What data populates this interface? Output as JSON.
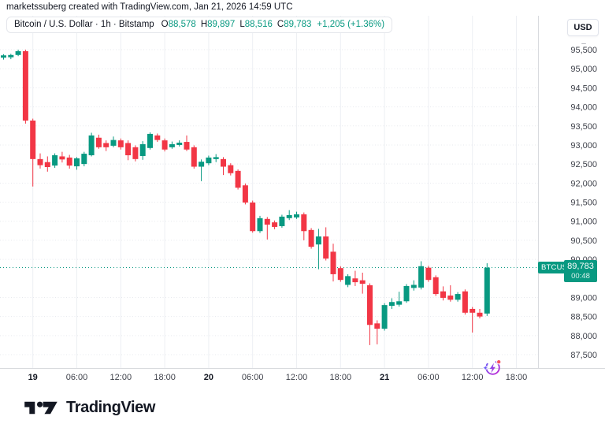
{
  "attribution": "marketssuberg created with TradingView.com, Jan 21, 2026 14:59 UTC",
  "legend": {
    "series_title": "Bitcoin / U.S. Dollar · 1h · Bitstamp",
    "ohlc": [
      {
        "label": "O",
        "value": "88,578"
      },
      {
        "label": "H",
        "value": "89,897"
      },
      {
        "label": "L",
        "value": "88,516"
      },
      {
        "label": "C",
        "value": "89,783"
      }
    ],
    "change": "+1,205 (+1.36%)"
  },
  "price_axis": {
    "currency": "USD",
    "scale_toggle": "–",
    "labels": [
      {
        "text": "95,500",
        "value": 95500
      },
      {
        "text": "95,000",
        "value": 95000
      },
      {
        "text": "94,500",
        "value": 94500
      },
      {
        "text": "94,000",
        "value": 94000
      },
      {
        "text": "93,500",
        "value": 93500
      },
      {
        "text": "93,000",
        "value": 93000
      },
      {
        "text": "92,500",
        "value": 92500
      },
      {
        "text": "92,000",
        "value": 92000
      },
      {
        "text": "91,500",
        "value": 91500
      },
      {
        "text": "91,000",
        "value": 91000
      },
      {
        "text": "90,500",
        "value": 90500
      },
      {
        "text": "90,000",
        "value": 90000
      },
      {
        "text": "89,000",
        "value": 89000
      },
      {
        "text": "88,500",
        "value": 88500
      },
      {
        "text": "88,000",
        "value": 88000
      },
      {
        "text": "87,500",
        "value": 87500
      }
    ]
  },
  "time_axis": {
    "labels": [
      {
        "text": "19",
        "i": 4,
        "day": true
      },
      {
        "text": "06:00",
        "i": 10
      },
      {
        "text": "12:00",
        "i": 16
      },
      {
        "text": "18:00",
        "i": 22
      },
      {
        "text": "20",
        "i": 28,
        "day": true
      },
      {
        "text": "06:00",
        "i": 34
      },
      {
        "text": "12:00",
        "i": 40
      },
      {
        "text": "18:00",
        "i": 46
      },
      {
        "text": "21",
        "i": 52,
        "day": true
      },
      {
        "text": "06:00",
        "i": 58
      },
      {
        "text": "12:00",
        "i": 64
      },
      {
        "text": "18:00",
        "i": 70
      }
    ]
  },
  "price_line": {
    "symbol": "BTCUSD",
    "price": "89,783",
    "value": 89783,
    "countdown": "00:48"
  },
  "logo": {
    "text": "TradingView"
  },
  "icons": {
    "replay": "replay-lightning-icon"
  },
  "colors": {
    "up": "#089981",
    "down": "#F23645",
    "price_line": "#089981",
    "axis_text": "#40434c",
    "day_text": "#131722",
    "vgrid": "#edeff3",
    "hgrid": "#e7e9ee",
    "axis_line": "#d8dade",
    "badge_bg": "#089981",
    "logo_color": "#131722",
    "replay_blue": "#6D5DF6",
    "replay_magenta": "#C026D3",
    "replay_dot": "#F7525F"
  },
  "chart_data": {
    "type": "candlestick",
    "title": "Bitcoin / U.S. Dollar",
    "symbol": "BTCUSD",
    "exchange": "Bitstamp",
    "interval": "1h",
    "ylim": [
      87250,
      95670
    ],
    "grid": "on",
    "candles": [
      {
        "t": "Jan 18 20:00",
        "v": [
          95290,
          95380,
          95240,
          95350
        ]
      },
      {
        "t": "Jan 18 21:00",
        "v": [
          95300,
          95390,
          95250,
          95360
        ]
      },
      {
        "t": "Jan 18 22:00",
        "v": [
          95360,
          95500,
          95330,
          95460
        ]
      },
      {
        "t": "Jan 18 23:00",
        "v": [
          95460,
          95500,
          93560,
          93640
        ]
      },
      {
        "t": "Jan 19 00:00",
        "v": [
          93640,
          93690,
          91910,
          92630
        ]
      },
      {
        "t": "Jan 19 01:00",
        "v": [
          92630,
          92780,
          92380,
          92470
        ]
      },
      {
        "t": "Jan 19 02:00",
        "v": [
          92550,
          92700,
          92300,
          92420
        ]
      },
      {
        "t": "Jan 19 03:00",
        "v": [
          92460,
          92780,
          92400,
          92730
        ]
      },
      {
        "t": "Jan 19 04:00",
        "v": [
          92700,
          92820,
          92540,
          92620
        ]
      },
      {
        "t": "Jan 19 05:00",
        "v": [
          92670,
          92740,
          92380,
          92460
        ]
      },
      {
        "t": "Jan 19 06:00",
        "v": [
          92440,
          92680,
          92350,
          92650
        ]
      },
      {
        "t": "Jan 19 07:00",
        "v": [
          92500,
          92820,
          92440,
          92770
        ]
      },
      {
        "t": "Jan 19 08:00",
        "v": [
          92730,
          93320,
          92700,
          93250
        ]
      },
      {
        "t": "Jan 19 09:00",
        "v": [
          93190,
          93270,
          92900,
          92940
        ]
      },
      {
        "t": "Jan 19 10:00",
        "v": [
          93050,
          93120,
          92840,
          92940
        ]
      },
      {
        "t": "Jan 19 11:00",
        "v": [
          92980,
          93220,
          92940,
          93130
        ]
      },
      {
        "t": "Jan 19 12:00",
        "v": [
          93120,
          93170,
          92880,
          92940
        ]
      },
      {
        "t": "Jan 19 13:00",
        "v": [
          93050,
          93120,
          92600,
          92730
        ]
      },
      {
        "t": "Jan 19 14:00",
        "v": [
          92940,
          92990,
          92570,
          92630
        ]
      },
      {
        "t": "Jan 19 15:00",
        "v": [
          92710,
          93100,
          92610,
          93020
        ]
      },
      {
        "t": "Jan 19 16:00",
        "v": [
          92920,
          93330,
          92880,
          93290
        ]
      },
      {
        "t": "Jan 19 17:00",
        "v": [
          93250,
          93300,
          93080,
          93130
        ]
      },
      {
        "t": "Jan 19 18:00",
        "v": [
          93120,
          93170,
          92830,
          92880
        ]
      },
      {
        "t": "Jan 19 19:00",
        "v": [
          92940,
          93090,
          92900,
          93020
        ]
      },
      {
        "t": "Jan 19 20:00",
        "v": [
          93000,
          93120,
          92960,
          93060
        ]
      },
      {
        "t": "Jan 19 21:00",
        "v": [
          93080,
          93250,
          92840,
          92880
        ]
      },
      {
        "t": "Jan 19 22:00",
        "v": [
          92940,
          92990,
          92380,
          92430
        ]
      },
      {
        "t": "Jan 19 23:00",
        "v": [
          92430,
          92620,
          92050,
          92560
        ]
      },
      {
        "t": "Jan 20 00:00",
        "v": [
          92520,
          92720,
          92470,
          92670
        ]
      },
      {
        "t": "Jan 20 01:00",
        "v": [
          92630,
          92760,
          92550,
          92680
        ]
      },
      {
        "t": "Jan 20 02:00",
        "v": [
          92630,
          92680,
          92210,
          92430
        ]
      },
      {
        "t": "Jan 20 03:00",
        "v": [
          92470,
          92520,
          92200,
          92260
        ]
      },
      {
        "t": "Jan 20 04:00",
        "v": [
          92320,
          92360,
          91830,
          91880
        ]
      },
      {
        "t": "Jan 20 05:00",
        "v": [
          91940,
          91990,
          91440,
          91490
        ]
      },
      {
        "t": "Jan 20 06:00",
        "v": [
          91490,
          91540,
          90700,
          90740
        ]
      },
      {
        "t": "Jan 20 07:00",
        "v": [
          90740,
          91140,
          90690,
          91080
        ]
      },
      {
        "t": "Jan 20 08:00",
        "v": [
          91060,
          91110,
          90520,
          90910
        ]
      },
      {
        "t": "Jan 20 09:00",
        "v": [
          90970,
          91020,
          90790,
          90850
        ]
      },
      {
        "t": "Jan 20 10:00",
        "v": [
          90870,
          91170,
          90830,
          91120
        ]
      },
      {
        "t": "Jan 20 11:00",
        "v": [
          91080,
          91290,
          91030,
          91160
        ]
      },
      {
        "t": "Jan 20 12:00",
        "v": [
          91100,
          91250,
          91060,
          91180
        ]
      },
      {
        "t": "Jan 20 13:00",
        "v": [
          91180,
          91230,
          90500,
          90740
        ]
      },
      {
        "t": "Jan 20 14:00",
        "v": [
          90770,
          90820,
          90280,
          90330
        ]
      },
      {
        "t": "Jan 20 15:00",
        "v": [
          90390,
          90800,
          89740,
          90600
        ]
      },
      {
        "t": "Jan 20 16:00",
        "v": [
          90600,
          90840,
          89970,
          90020
        ]
      },
      {
        "t": "Jan 20 17:00",
        "v": [
          90200,
          90410,
          89420,
          89610
        ]
      },
      {
        "t": "Jan 20 18:00",
        "v": [
          89770,
          89820,
          89410,
          89460
        ]
      },
      {
        "t": "Jan 20 19:00",
        "v": [
          89330,
          89610,
          89270,
          89560
        ]
      },
      {
        "t": "Jan 20 20:00",
        "v": [
          89500,
          89700,
          89300,
          89400
        ]
      },
      {
        "t": "Jan 20 21:00",
        "v": [
          89450,
          89650,
          89100,
          89360
        ]
      },
      {
        "t": "Jan 20 22:00",
        "v": [
          89320,
          89370,
          87750,
          88280
        ]
      },
      {
        "t": "Jan 20 23:00",
        "v": [
          88320,
          88400,
          87770,
          88180
        ]
      },
      {
        "t": "Jan 21 00:00",
        "v": [
          88180,
          88850,
          88130,
          88800
        ]
      },
      {
        "t": "Jan 21 01:00",
        "v": [
          88780,
          88980,
          88700,
          88880
        ]
      },
      {
        "t": "Jan 21 02:00",
        "v": [
          88810,
          89150,
          88760,
          88900
        ]
      },
      {
        "t": "Jan 21 03:00",
        "v": [
          88900,
          89350,
          88860,
          89300
        ]
      },
      {
        "t": "Jan 21 04:00",
        "v": [
          89250,
          89450,
          89180,
          89330
        ]
      },
      {
        "t": "Jan 21 05:00",
        "v": [
          89260,
          89950,
          89210,
          89820
        ]
      },
      {
        "t": "Jan 21 06:00",
        "v": [
          89780,
          89830,
          89410,
          89460
        ]
      },
      {
        "t": "Jan 21 07:00",
        "v": [
          89530,
          89580,
          89040,
          89090
        ]
      },
      {
        "t": "Jan 21 08:00",
        "v": [
          89160,
          89290,
          88920,
          88990
        ]
      },
      {
        "t": "Jan 21 09:00",
        "v": [
          89050,
          89320,
          88890,
          88940
        ]
      },
      {
        "t": "Jan 21 10:00",
        "v": [
          88940,
          89140,
          88890,
          89090
        ]
      },
      {
        "t": "Jan 21 11:00",
        "v": [
          89160,
          89210,
          88550,
          88600
        ]
      },
      {
        "t": "Jan 21 12:00",
        "v": [
          88700,
          88750,
          88080,
          88600
        ]
      },
      {
        "t": "Jan 21 13:00",
        "v": [
          88600,
          88700,
          88450,
          88500
        ]
      },
      {
        "t": "Jan 21 14:00",
        "v": [
          88578,
          89897,
          88516,
          89783
        ]
      }
    ]
  }
}
